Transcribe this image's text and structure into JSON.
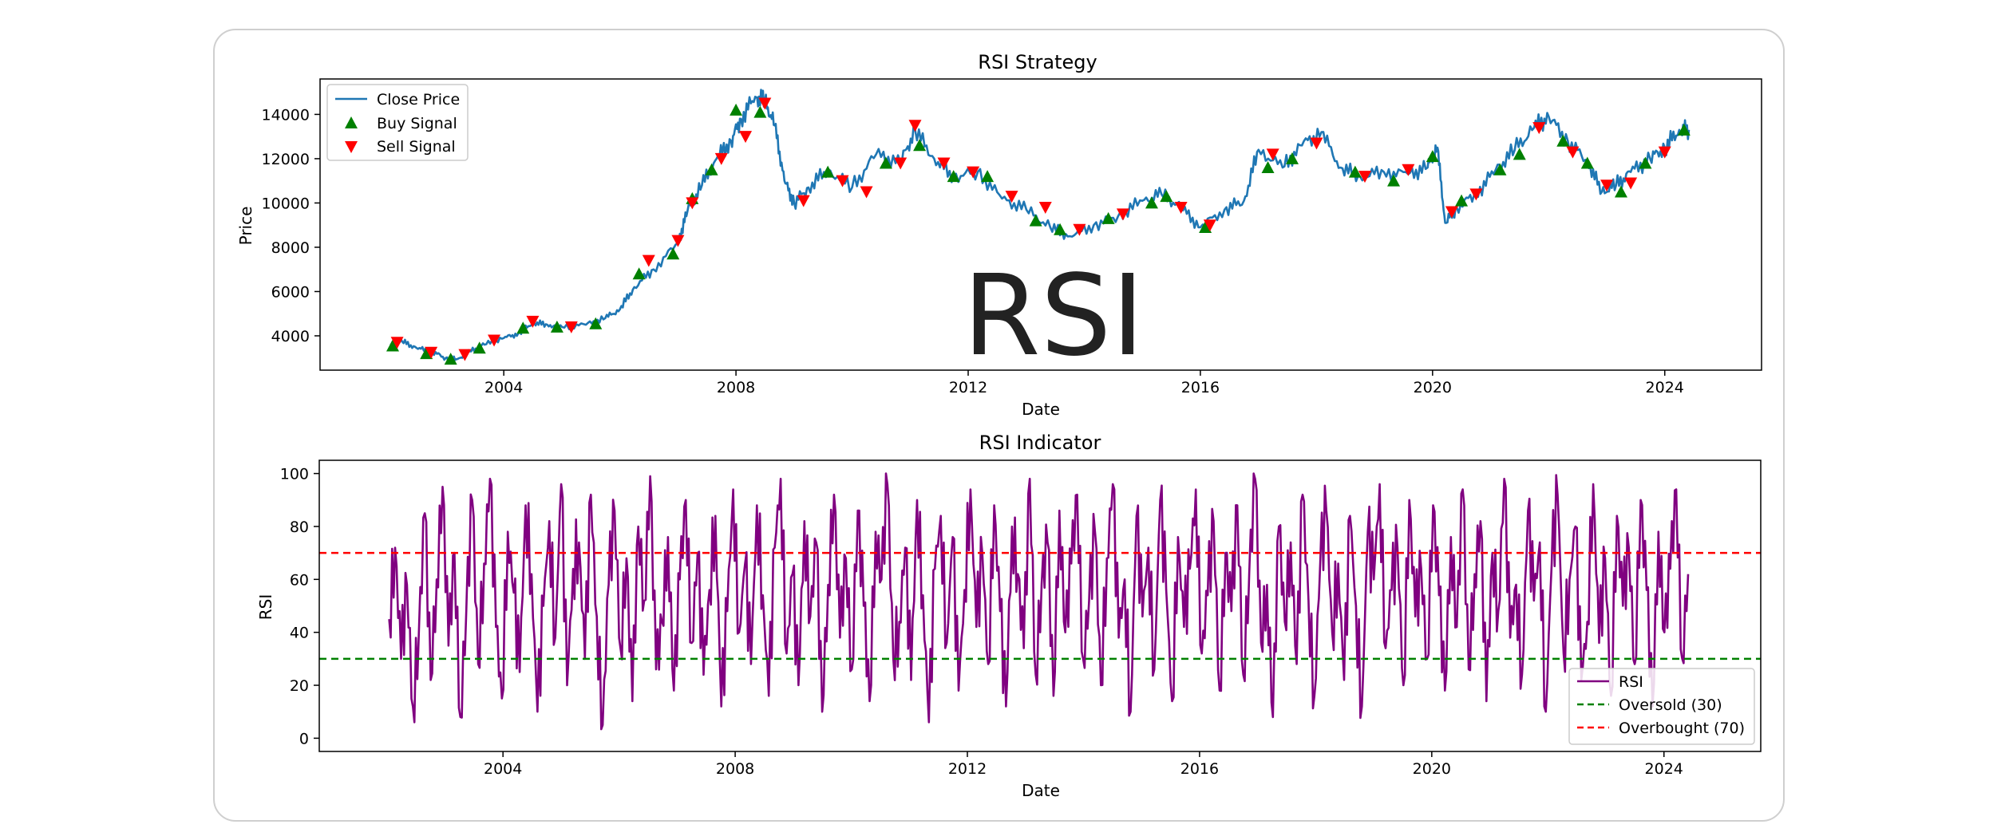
{
  "chart_data": [
    {
      "type": "line",
      "title": "RSI Strategy",
      "xlabel": "Date",
      "ylabel": "Price",
      "xlim": [
        "2000-11-01",
        "2025-09-01"
      ],
      "ylim": [
        2450,
        15600
      ],
      "x_ticks": [
        "2004",
        "2008",
        "2012",
        "2016",
        "2020",
        "2024"
      ],
      "y_ticks": [
        4000,
        6000,
        8000,
        10000,
        12000,
        14000
      ],
      "grid": false,
      "legend_position": "top-left",
      "watermark": "RSI",
      "series": [
        {
          "name": "Close Price",
          "color": "#1f77b4",
          "points": [
            [
              "2002-01-15",
              3600
            ],
            [
              "2002-04-01",
              3750
            ],
            [
              "2002-07-01",
              3450
            ],
            [
              "2002-10-01",
              3300
            ],
            [
              "2003-01-01",
              3000
            ],
            [
              "2003-03-15",
              2950
            ],
            [
              "2003-06-01",
              3300
            ],
            [
              "2003-09-01",
              3600
            ],
            [
              "2004-01-01",
              3900
            ],
            [
              "2004-04-01",
              4100
            ],
            [
              "2004-07-01",
              4600
            ],
            [
              "2004-10-01",
              4500
            ],
            [
              "2005-01-01",
              4400
            ],
            [
              "2005-06-01",
              4500
            ],
            [
              "2005-10-01",
              4800
            ],
            [
              "2006-01-01",
              5200
            ],
            [
              "2006-04-01",
              6200
            ],
            [
              "2006-08-01",
              7000
            ],
            [
              "2007-01-01",
              8200
            ],
            [
              "2007-03-01",
              9600
            ],
            [
              "2007-06-01",
              10800
            ],
            [
              "2007-09-01",
              12000
            ],
            [
              "2007-12-01",
              12800
            ],
            [
              "2008-02-01",
              13800
            ],
            [
              "2008-05-01",
              14800
            ],
            [
              "2008-07-01",
              14600
            ],
            [
              "2008-09-01",
              13500
            ],
            [
              "2008-11-01",
              11000
            ],
            [
              "2009-01-01",
              10000
            ],
            [
              "2009-04-01",
              10700
            ],
            [
              "2009-08-01",
              11500
            ],
            [
              "2010-01-01",
              10700
            ],
            [
              "2010-06-01",
              12200
            ],
            [
              "2010-11-01",
              11800
            ],
            [
              "2011-02-01",
              13300
            ],
            [
              "2011-06-01",
              12000
            ],
            [
              "2011-10-01",
              11200
            ],
            [
              "2012-03-01",
              11400
            ],
            [
              "2012-08-01",
              10200
            ],
            [
              "2013-01-01",
              9700
            ],
            [
              "2013-06-01",
              8900
            ],
            [
              "2013-10-01",
              8500
            ],
            [
              "2014-03-01",
              9000
            ],
            [
              "2014-08-01",
              9400
            ],
            [
              "2015-01-01",
              10100
            ],
            [
              "2015-05-01",
              10400
            ],
            [
              "2015-09-01",
              9800
            ],
            [
              "2016-01-01",
              8900
            ],
            [
              "2016-06-01",
              9700
            ],
            [
              "2016-10-01",
              10100
            ],
            [
              "2017-01-01",
              12400
            ],
            [
              "2017-06-01",
              11600
            ],
            [
              "2017-10-01",
              12600
            ],
            [
              "2018-02-01",
              13200
            ],
            [
              "2018-06-01",
              11600
            ],
            [
              "2018-10-01",
              11200
            ],
            [
              "2019-03-01",
              11400
            ],
            [
              "2019-08-01",
              11300
            ],
            [
              "2019-12-01",
              11600
            ],
            [
              "2020-02-01",
              12500
            ],
            [
              "2020-03-20",
              9100
            ],
            [
              "2020-06-01",
              9800
            ],
            [
              "2020-10-01",
              10400
            ],
            [
              "2021-02-01",
              11500
            ],
            [
              "2021-06-01",
              12400
            ],
            [
              "2021-10-01",
              13400
            ],
            [
              "2022-01-01",
              13900
            ],
            [
              "2022-05-01",
              12800
            ],
            [
              "2022-09-01",
              11900
            ],
            [
              "2022-12-01",
              10500
            ],
            [
              "2023-03-01",
              10800
            ],
            [
              "2023-06-01",
              11400
            ],
            [
              "2023-10-01",
              12000
            ],
            [
              "2024-01-01",
              12500
            ],
            [
              "2024-04-01",
              13300
            ],
            [
              "2024-06-01",
              13300
            ]
          ]
        },
        {
          "name": "Buy Signal",
          "color": "#008000",
          "marker": "triangle-up",
          "points": [
            [
              "2002-02-01",
              3550
            ],
            [
              "2002-09-01",
              3200
            ],
            [
              "2003-02-01",
              2950
            ],
            [
              "2003-08-01",
              3450
            ],
            [
              "2004-05-01",
              4350
            ],
            [
              "2004-12-01",
              4400
            ],
            [
              "2005-08-01",
              4550
            ],
            [
              "2006-05-01",
              6800
            ],
            [
              "2006-12-01",
              7700
            ],
            [
              "2007-04-01",
              10200
            ],
            [
              "2007-08-01",
              11500
            ],
            [
              "2008-01-01",
              14200
            ],
            [
              "2008-06-01",
              14100
            ],
            [
              "2009-08-01",
              11400
            ],
            [
              "2010-08-01",
              11800
            ],
            [
              "2011-03-01",
              12600
            ],
            [
              "2011-10-01",
              11200
            ],
            [
              "2012-05-01",
              11200
            ],
            [
              "2013-03-01",
              9200
            ],
            [
              "2013-08-01",
              8800
            ],
            [
              "2014-06-01",
              9300
            ],
            [
              "2015-03-01",
              10000
            ],
            [
              "2015-06-01",
              10300
            ],
            [
              "2016-02-01",
              8900
            ],
            [
              "2017-03-01",
              11600
            ],
            [
              "2017-08-01",
              12000
            ],
            [
              "2018-09-01",
              11400
            ],
            [
              "2019-05-01",
              11000
            ],
            [
              "2020-01-01",
              12100
            ],
            [
              "2020-07-01",
              10100
            ],
            [
              "2021-03-01",
              11500
            ],
            [
              "2021-07-01",
              12200
            ],
            [
              "2022-04-01",
              12800
            ],
            [
              "2022-09-01",
              11800
            ],
            [
              "2023-04-01",
              10500
            ],
            [
              "2023-09-01",
              11800
            ],
            [
              "2024-05-01",
              13300
            ]
          ]
        },
        {
          "name": "Sell Signal",
          "color": "#ff0000",
          "marker": "triangle-down",
          "points": [
            [
              "2002-03-01",
              3700
            ],
            [
              "2002-10-01",
              3250
            ],
            [
              "2003-05-01",
              3150
            ],
            [
              "2003-11-01",
              3800
            ],
            [
              "2004-07-01",
              4650
            ],
            [
              "2005-03-01",
              4400
            ],
            [
              "2006-07-01",
              7400
            ],
            [
              "2007-01-01",
              8300
            ],
            [
              "2007-04-01",
              10000
            ],
            [
              "2007-10-01",
              12000
            ],
            [
              "2008-03-01",
              13000
            ],
            [
              "2008-07-01",
              14500
            ],
            [
              "2009-03-01",
              10100
            ],
            [
              "2009-11-01",
              11000
            ],
            [
              "2010-04-01",
              10500
            ],
            [
              "2010-11-01",
              11800
            ],
            [
              "2011-02-01",
              13500
            ],
            [
              "2011-08-01",
              11800
            ],
            [
              "2012-02-01",
              11400
            ],
            [
              "2012-10-01",
              10300
            ],
            [
              "2013-05-01",
              9800
            ],
            [
              "2013-12-01",
              8800
            ],
            [
              "2014-09-01",
              9500
            ],
            [
              "2015-09-01",
              9800
            ],
            [
              "2016-03-01",
              9000
            ],
            [
              "2017-04-01",
              12200
            ],
            [
              "2018-01-01",
              12700
            ],
            [
              "2018-11-01",
              11200
            ],
            [
              "2019-08-01",
              11500
            ],
            [
              "2020-05-01",
              9600
            ],
            [
              "2020-10-01",
              10400
            ],
            [
              "2021-11-01",
              13400
            ],
            [
              "2022-06-01",
              12300
            ],
            [
              "2023-01-01",
              10800
            ],
            [
              "2023-06-01",
              10900
            ],
            [
              "2024-01-01",
              12300
            ]
          ]
        }
      ]
    },
    {
      "type": "line",
      "title": "RSI Indicator",
      "xlabel": "Date",
      "ylabel": "RSI",
      "xlim": [
        "2000-11-01",
        "2025-09-01"
      ],
      "ylim": [
        -5,
        105
      ],
      "x_ticks": [
        "2004",
        "2008",
        "2012",
        "2016",
        "2020",
        "2024"
      ],
      "y_ticks": [
        0,
        20,
        40,
        60,
        80,
        100
      ],
      "grid": false,
      "legend_position": "bottom-right",
      "series": [
        {
          "name": "RSI",
          "color": "#800080",
          "x_start": "2002-01-15",
          "x_end": "2024-06-01",
          "values": [
            45,
            72,
            30,
            58,
            12,
            40,
            85,
            22,
            60,
            95,
            35,
            70,
            8,
            48,
            90,
            28,
            66,
            98,
            42,
            15,
            78,
            55,
            25,
            88,
            62,
            10,
            50,
            82,
            38,
            96,
            20,
            64,
            74,
            30,
            92,
            46,
            5,
            58,
            86,
            34,
            68,
            14,
            80,
            52,
            99,
            26,
            44,
            76,
            18,
            60,
            90,
            36,
            70,
            24,
            56,
            84,
            12,
            48,
            94,
            40,
            66,
            28,
            88,
            54,
            16,
            72,
            98,
            32,
            62,
            20,
            82,
            46,
            74,
            10,
            58,
            92,
            38,
            68,
            26,
            86,
            50,
            14,
            78,
            60,
            96,
            30,
            44,
            72,
            22,
            90,
            54,
            6,
            64,
            84,
            36,
            76,
            18,
            56,
            94,
            42,
            70,
            28,
            88,
            48,
            12,
            80,
            62,
            34,
            98,
            24,
            58,
            74,
            16,
            86,
            40,
            66,
            92,
            30,
            52,
            78,
            20,
            68,
            96,
            38,
            60,
            10,
            84,
            46,
            72,
            26,
            90,
            56,
            14,
            76,
            42,
            64,
            94,
            32,
            54,
            82,
            18,
            70,
            48,
            88,
            24,
            62,
            98,
            36,
            58,
            8,
            80,
            44,
            74,
            28,
            92,
            52,
            16,
            68,
            86,
            40,
            66,
            22,
            84,
            50,
            12,
            78,
            60,
            96,
            34,
            56,
            72,
            20,
            90,
            46,
            64,
            30,
            88,
            54,
            18,
            76,
            42,
            94,
            26,
            62,
            82,
            14,
            70,
            48,
            98,
            38,
            58,
            24,
            86,
            52,
            74,
            10,
            66,
            92,
            32,
            60,
            80,
            22,
            44,
            96,
            36,
            68,
            16,
            84,
            50,
            72,
            28,
            90,
            56,
            12,
            78,
            40,
            64,
            94,
            30,
            62
          ]
        },
        {
          "name": "Oversold (30)",
          "color": "#008000",
          "style": "dashed",
          "value": 30
        },
        {
          "name": "Overbought (70)",
          "color": "#ff0000",
          "style": "dashed",
          "value": 70
        }
      ]
    }
  ]
}
